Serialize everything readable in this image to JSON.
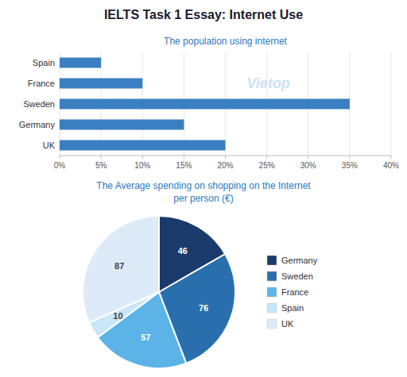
{
  "title": "IELTS Task 1 Essay: Internet Use",
  "chart_data": [
    {
      "type": "bar",
      "orientation": "horizontal",
      "title": "The population using internet",
      "categories": [
        "UK",
        "Germany",
        "Sweden",
        "France",
        "Spain"
      ],
      "values": [
        20,
        15,
        35,
        10,
        5
      ],
      "color": "#3a7fc1",
      "xlim": [
        0,
        40
      ],
      "xticks": [
        {
          "value": 0,
          "label": "0%"
        },
        {
          "value": 5,
          "label": "5%"
        },
        {
          "value": 10,
          "label": "10%"
        },
        {
          "value": 15,
          "label": "15%"
        },
        {
          "value": 20,
          "label": "20%"
        },
        {
          "value": 25,
          "label": "25%"
        },
        {
          "value": 30,
          "label": "30%"
        },
        {
          "value": 35,
          "label": "35%"
        },
        {
          "value": 40,
          "label": "40%"
        }
      ],
      "grid": true,
      "annotations": [
        "Vietop"
      ]
    },
    {
      "type": "pie",
      "title": "The Average spending on shopping on the Internet\nper person (€)",
      "categories": [
        "Germany",
        "Sweden",
        "France",
        "Spain",
        "UK"
      ],
      "values": [
        46,
        76,
        57,
        10,
        87
      ],
      "colors": [
        "#1a3a6b",
        "#2a6fad",
        "#5bb3e8",
        "#c8e6f7",
        "#ddeaf7"
      ],
      "data_labels": true,
      "legend": "right"
    }
  ]
}
